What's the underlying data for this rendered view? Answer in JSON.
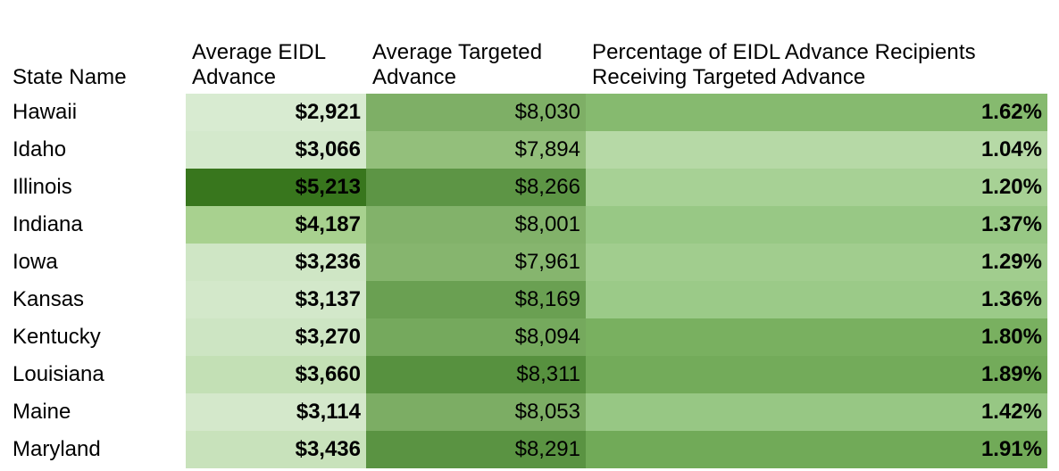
{
  "headers": {
    "state": "State Name",
    "avg_eidl": "Average EIDL Advance",
    "avg_targeted": "Average Targeted Advance",
    "pct_targeted": "Percentage of EIDL Advance Recipients Receiving Targeted Advance"
  },
  "rows": [
    {
      "state": "Hawaii",
      "avg_eidl": "$2,921",
      "avg_targeted": "$8,030",
      "pct": "1.62%"
    },
    {
      "state": "Idaho",
      "avg_eidl": "$3,066",
      "avg_targeted": "$7,894",
      "pct": "1.04%"
    },
    {
      "state": "Illinois",
      "avg_eidl": "$5,213",
      "avg_targeted": "$8,266",
      "pct": "1.20%"
    },
    {
      "state": "Indiana",
      "avg_eidl": "$4,187",
      "avg_targeted": "$8,001",
      "pct": "1.37%"
    },
    {
      "state": "Iowa",
      "avg_eidl": "$3,236",
      "avg_targeted": "$7,961",
      "pct": "1.29%"
    },
    {
      "state": "Kansas",
      "avg_eidl": "$3,137",
      "avg_targeted": "$8,169",
      "pct": "1.36%"
    },
    {
      "state": "Kentucky",
      "avg_eidl": "$3,270",
      "avg_targeted": "$8,094",
      "pct": "1.80%"
    },
    {
      "state": "Louisiana",
      "avg_eidl": "$3,660",
      "avg_targeted": "$8,311",
      "pct": "1.89%"
    },
    {
      "state": "Maine",
      "avg_eidl": "$3,114",
      "avg_targeted": "$8,053",
      "pct": "1.42%"
    },
    {
      "state": "Maryland",
      "avg_eidl": "$3,436",
      "avg_targeted": "$8,291",
      "pct": "1.91%"
    }
  ],
  "colors": {
    "avg_eidl": [
      "#d8ebd1",
      "#d4e9cc",
      "#38761d",
      "#a8d18f",
      "#cfe6c5",
      "#d3e8ca",
      "#cde5c3",
      "#c3e0b5",
      "#d4e8cb",
      "#c8e2bb"
    ],
    "avg_targeted": [
      "#7eaf66",
      "#93bf7b",
      "#5d9545",
      "#82b26a",
      "#86b56e",
      "#6aa052",
      "#75a95d",
      "#57913f",
      "#7cad64",
      "#5a9342"
    ],
    "pct_targeted": [
      "#86ba6f",
      "#b6d9a6",
      "#a7d195",
      "#98c885",
      "#a1cd8e",
      "#9bca88",
      "#79b060",
      "#73ab5a",
      "#97c784",
      "#71aa58"
    ]
  }
}
